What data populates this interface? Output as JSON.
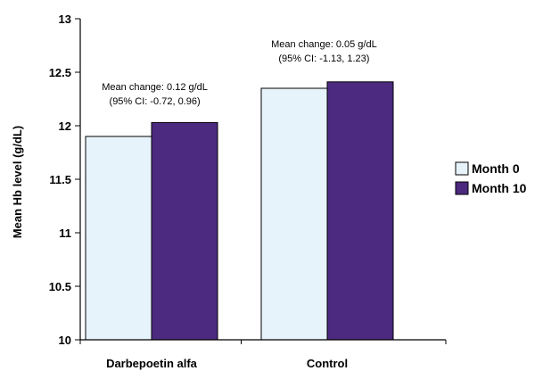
{
  "chart_data": {
    "type": "bar",
    "title": "",
    "xlabel": "",
    "ylabel": "Mean Hb level (g/dL)",
    "ylim": [
      10,
      13
    ],
    "yticks": [
      "10",
      "10.5",
      "11",
      "11.5",
      "12",
      "12.5",
      "13"
    ],
    "categories": [
      "Darbepoetin alfa",
      "Control"
    ],
    "series": [
      {
        "name": "Month 0",
        "values": [
          11.9,
          12.35
        ],
        "color": "#e6f3fb"
      },
      {
        "name": "Month 10",
        "values": [
          12.03,
          12.41
        ],
        "color": "#4b2a7f"
      }
    ],
    "annotations": [
      {
        "category": "Darbepoetin alfa",
        "lines": [
          "Mean change: 0.12 g/dL",
          "(95% CI: -0.72, 0.96)"
        ]
      },
      {
        "category": "Control",
        "lines": [
          "Mean change: 0.05 g/dL",
          "(95% CI: -1.13, 1.23)"
        ]
      }
    ],
    "grid": false,
    "legend_position": "right"
  }
}
